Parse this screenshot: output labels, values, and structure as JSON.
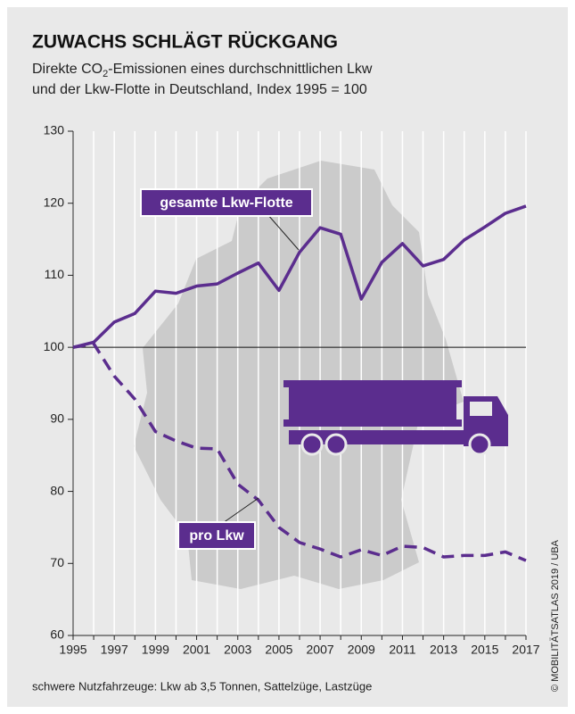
{
  "chart_data": {
    "type": "line",
    "title": "ZUWACHS SCHLÄGT RÜCKGANG",
    "subtitle": {
      "line1": {
        "a": "Direkte CO",
        "sub": "2",
        "b": "-Emissionen eines durchschnittlichen Lkw"
      },
      "line2": "und der Lkw-Flotte in Deutschland, Index 1995 = 100"
    },
    "x": [
      1995,
      1996,
      1997,
      1998,
      1999,
      2000,
      2001,
      2002,
      2003,
      2004,
      2005,
      2006,
      2007,
      2008,
      2009,
      2010,
      2011,
      2012,
      2013,
      2014,
      2015,
      2016,
      2017
    ],
    "series": [
      {
        "name": "gesamte Lkw-Flotte",
        "color": "#5b2d8e",
        "dashed": false,
        "values": [
          100,
          100.7,
          103.5,
          104.7,
          107.8,
          107.5,
          108.5,
          108.8,
          110.3,
          111.7,
          107.9,
          113.2,
          116.6,
          115.7,
          106.7,
          111.8,
          114.4,
          111.3,
          112.2,
          114.9,
          116.7,
          118.6,
          119.6
        ]
      },
      {
        "name": "pro Lkw",
        "color": "#5b2d8e",
        "dashed": true,
        "values": [
          100,
          100.5,
          96,
          92.8,
          88.3,
          87,
          86,
          85.9,
          81,
          78.8,
          75,
          72.9,
          72,
          70.9,
          71.9,
          71.1,
          72.4,
          72.2,
          70.9,
          71.1,
          71.1,
          71.6,
          70.4
        ]
      }
    ],
    "xlim": [
      1995,
      2017
    ],
    "xticks": [
      1995,
      1997,
      1999,
      2001,
      2003,
      2005,
      2007,
      2009,
      2011,
      2013,
      2015,
      2017
    ],
    "ylim": [
      60,
      130
    ],
    "yticks": [
      60,
      70,
      80,
      90,
      100,
      110,
      120,
      130
    ],
    "reference_line": 100,
    "grid": true,
    "footnote": "schwere Nutzfahrzeuge: Lkw ab 3,5 Tonnen, Sattelzüge, Lastzüge",
    "source": "© MOBILITÄTSATLAS 2019 / UBA"
  }
}
